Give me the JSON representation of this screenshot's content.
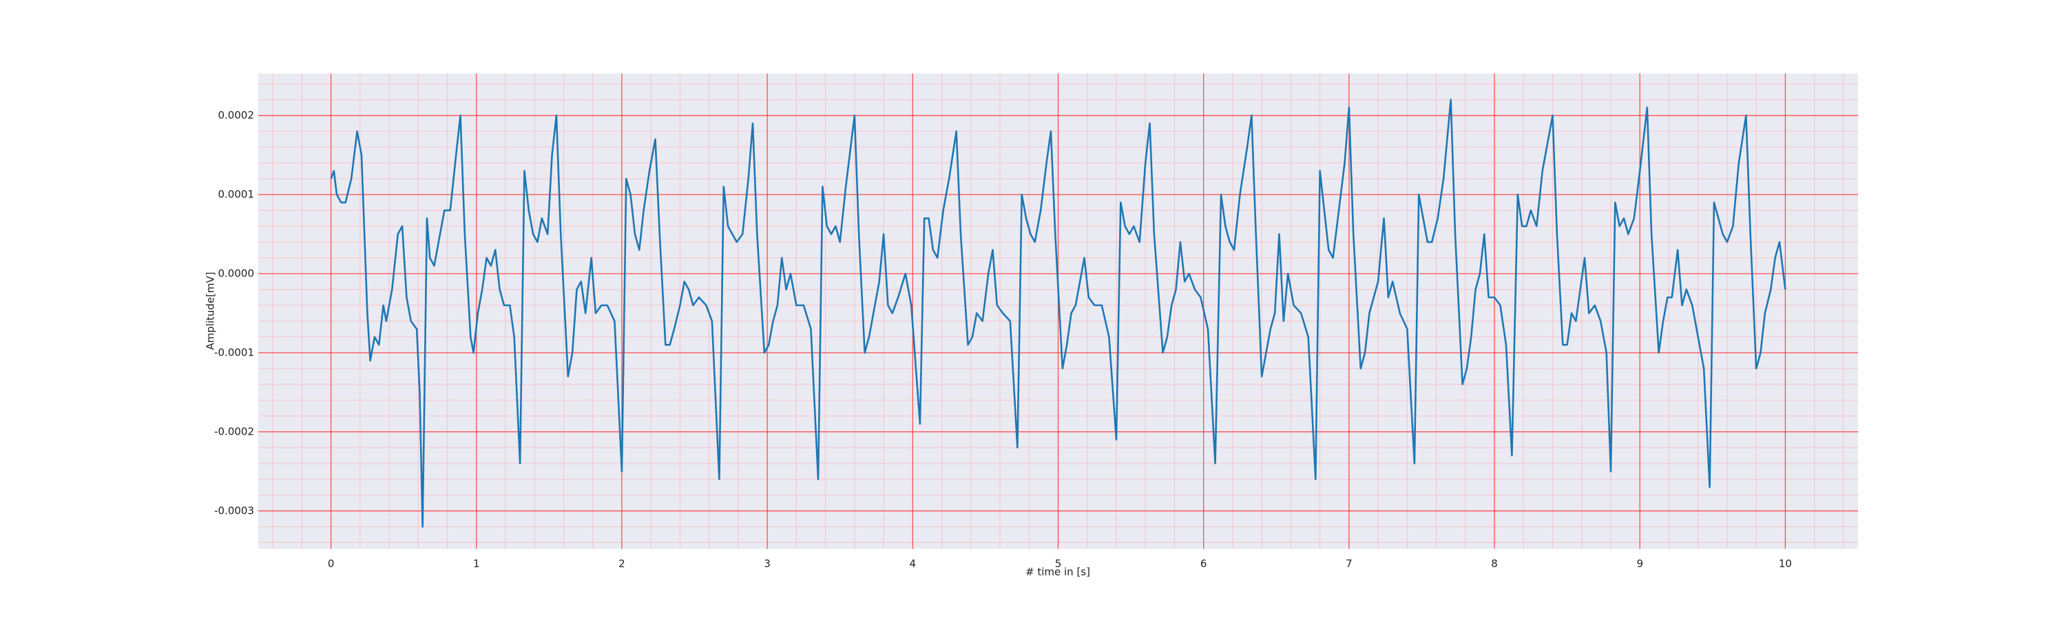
{
  "chart_data": {
    "type": "line",
    "xlabel": "# time in [s]",
    "ylabel": "Amplitude[mV]",
    "color": "#1f77b4",
    "grid": true,
    "minor_grid": true,
    "xlim": [
      -0.5,
      10.5
    ],
    "xticks": [
      0,
      1,
      2,
      3,
      4,
      5,
      6,
      7,
      8,
      9,
      10
    ],
    "ylim": [
      -0.000348,
      0.000253
    ],
    "yticks": [
      -0.0003,
      -0.0002,
      -0.0001,
      {
        "value": 0,
        "label": "0.0000"
      },
      0.0001,
      0.0002
    ],
    "x": [
      0,
      0.02,
      0.04,
      0.07,
      0.1,
      0.14,
      0.18,
      0.21,
      0.25,
      0.27,
      0.3,
      0.33,
      0.36,
      0.38,
      0.42,
      0.46,
      0.49,
      0.52,
      0.55,
      0.59,
      0.61,
      0.63,
      0.66,
      0.68,
      0.71,
      0.74,
      0.78,
      0.82,
      0.86,
      0.89,
      0.92,
      0.96,
      0.98,
      1.01,
      1.04,
      1.07,
      1.1,
      1.13,
      1.16,
      1.19,
      1.23,
      1.26,
      1.3,
      1.33,
      1.36,
      1.39,
      1.42,
      1.45,
      1.49,
      1.52,
      1.55,
      1.58,
      1.63,
      1.66,
      1.69,
      1.72,
      1.75,
      1.79,
      1.82,
      1.86,
      1.9,
      1.95,
      2.0,
      2.03,
      2.06,
      2.09,
      2.12,
      2.15,
      2.19,
      2.23,
      2.26,
      2.3,
      2.33,
      2.36,
      2.4,
      2.43,
      2.46,
      2.49,
      2.53,
      2.58,
      2.62,
      2.67,
      2.7,
      2.73,
      2.76,
      2.79,
      2.83,
      2.87,
      2.9,
      2.93,
      2.98,
      3.01,
      3.04,
      3.07,
      3.1,
      3.13,
      3.16,
      3.2,
      3.25,
      3.3,
      3.35,
      3.38,
      3.41,
      3.44,
      3.47,
      3.5,
      3.54,
      3.6,
      3.63,
      3.67,
      3.7,
      3.73,
      3.77,
      3.8,
      3.83,
      3.86,
      3.9,
      3.95,
      3.99,
      4.05,
      4.08,
      4.11,
      4.14,
      4.17,
      4.21,
      4.25,
      4.3,
      4.33,
      4.38,
      4.41,
      4.44,
      4.48,
      4.52,
      4.55,
      4.58,
      4.62,
      4.67,
      4.72,
      4.75,
      4.78,
      4.81,
      4.84,
      4.88,
      4.92,
      4.95,
      4.98,
      5.03,
      5.06,
      5.09,
      5.12,
      5.15,
      5.18,
      5.21,
      5.25,
      5.3,
      5.35,
      5.4,
      5.43,
      5.46,
      5.49,
      5.52,
      5.56,
      5.6,
      5.63,
      5.66,
      5.72,
      5.75,
      5.78,
      5.81,
      5.84,
      5.87,
      5.9,
      5.94,
      5.98,
      6.03,
      6.08,
      6.12,
      6.15,
      6.18,
      6.21,
      6.25,
      6.3,
      6.33,
      6.36,
      6.4,
      6.43,
      6.46,
      6.49,
      6.52,
      6.55,
      6.58,
      6.62,
      6.67,
      6.72,
      6.77,
      6.8,
      6.83,
      6.86,
      6.89,
      6.93,
      6.97,
      7.0,
      7.03,
      7.08,
      7.11,
      7.14,
      7.17,
      7.2,
      7.24,
      7.27,
      7.3,
      7.35,
      7.4,
      7.45,
      7.48,
      7.51,
      7.54,
      7.57,
      7.61,
      7.65,
      7.7,
      7.73,
      7.78,
      7.81,
      7.84,
      7.87,
      7.9,
      7.93,
      7.96,
      8.0,
      8.04,
      8.08,
      8.12,
      8.16,
      8.19,
      8.22,
      8.25,
      8.29,
      8.33,
      8.4,
      8.43,
      8.47,
      8.5,
      8.53,
      8.56,
      8.59,
      8.62,
      8.65,
      8.69,
      8.73,
      8.77,
      8.8,
      8.83,
      8.86,
      8.89,
      8.92,
      8.96,
      9.0,
      9.05,
      9.08,
      9.13,
      9.16,
      9.19,
      9.22,
      9.26,
      9.29,
      9.32,
      9.36,
      9.4,
      9.44,
      9.48,
      9.51,
      9.54,
      9.57,
      9.6,
      9.64,
      9.68,
      9.73,
      9.76,
      9.8,
      9.83,
      9.86,
      9.9,
      9.93,
      9.96,
      10.0
    ],
    "values": [
      0.00012,
      0.00013,
      0.0001,
      9e-05,
      9e-05,
      0.00012,
      0.00018,
      0.00015,
      -5e-05,
      -0.00011,
      -8e-05,
      -9e-05,
      -4e-05,
      -6e-05,
      -2e-05,
      5e-05,
      6e-05,
      -3e-05,
      -6e-05,
      -7e-05,
      -0.00015,
      -0.00032,
      7e-05,
      2e-05,
      1e-05,
      4e-05,
      8e-05,
      8e-05,
      0.00015,
      0.0002,
      5e-05,
      -8e-05,
      -0.0001,
      -5e-05,
      -2e-05,
      2e-05,
      1e-05,
      3e-05,
      -2e-05,
      -4e-05,
      -4e-05,
      -8e-05,
      -0.00024,
      0.00013,
      8e-05,
      5e-05,
      4e-05,
      7e-05,
      5e-05,
      0.00015,
      0.0002,
      5e-05,
      -0.00013,
      -0.0001,
      -2e-05,
      -1e-05,
      -5e-05,
      2e-05,
      -5e-05,
      -4e-05,
      -4e-05,
      -6e-05,
      -0.00025,
      0.00012,
      0.0001,
      5e-05,
      3e-05,
      8e-05,
      0.00013,
      0.00017,
      5e-05,
      -9e-05,
      -9e-05,
      -7e-05,
      -4e-05,
      -1e-05,
      -2e-05,
      -4e-05,
      -3e-05,
      -4e-05,
      -6e-05,
      -0.00026,
      0.00011,
      6e-05,
      5e-05,
      4e-05,
      5e-05,
      0.00012,
      0.00019,
      5e-05,
      -0.0001,
      -9e-05,
      -6e-05,
      -4e-05,
      2e-05,
      -2e-05,
      0,
      -4e-05,
      -4e-05,
      -7e-05,
      -0.00026,
      0.00011,
      6e-05,
      5e-05,
      6e-05,
      4e-05,
      0.00011,
      0.0002,
      5e-05,
      -0.0001,
      -8e-05,
      -5e-05,
      -1e-05,
      5e-05,
      -4e-05,
      -5e-05,
      -3e-05,
      0,
      -4e-05,
      -0.00019,
      7e-05,
      7e-05,
      3e-05,
      2e-05,
      8e-05,
      0.00012,
      0.00018,
      5e-05,
      -9e-05,
      -8e-05,
      -5e-05,
      -6e-05,
      0,
      3e-05,
      -4e-05,
      -5e-05,
      -6e-05,
      -0.00022,
      0.0001,
      7e-05,
      5e-05,
      4e-05,
      8e-05,
      0.00014,
      0.00018,
      5e-05,
      -0.00012,
      -9e-05,
      -5e-05,
      -4e-05,
      -1e-05,
      2e-05,
      -3e-05,
      -4e-05,
      -4e-05,
      -8e-05,
      -0.00021,
      9e-05,
      6e-05,
      5e-05,
      6e-05,
      4e-05,
      0.00014,
      0.00019,
      5e-05,
      -0.0001,
      -8e-05,
      -4e-05,
      -2e-05,
      4e-05,
      -1e-05,
      0,
      -2e-05,
      -3e-05,
      -7e-05,
      -0.00024,
      0.0001,
      6e-05,
      4e-05,
      3e-05,
      0.0001,
      0.00016,
      0.0002,
      5e-05,
      -0.00013,
      -0.0001,
      -7e-05,
      -5e-05,
      5e-05,
      -6e-05,
      0,
      -4e-05,
      -5e-05,
      -8e-05,
      -0.00026,
      0.00013,
      8e-05,
      3e-05,
      2e-05,
      8e-05,
      0.00014,
      0.00021,
      5e-05,
      -0.00012,
      -0.0001,
      -5e-05,
      -3e-05,
      -1e-05,
      7e-05,
      -3e-05,
      -1e-05,
      -5e-05,
      -7e-05,
      -0.00024,
      0.0001,
      7e-05,
      4e-05,
      4e-05,
      7e-05,
      0.00012,
      0.00022,
      5e-05,
      -0.00014,
      -0.00012,
      -8e-05,
      -2e-05,
      0,
      5e-05,
      -3e-05,
      -3e-05,
      -4e-05,
      -9e-05,
      -0.00023,
      0.0001,
      6e-05,
      6e-05,
      8e-05,
      6e-05,
      0.00013,
      0.0002,
      5e-05,
      -9e-05,
      -9e-05,
      -5e-05,
      -6e-05,
      -2e-05,
      2e-05,
      -5e-05,
      -4e-05,
      -6e-05,
      -0.0001,
      -0.00025,
      9e-05,
      6e-05,
      7e-05,
      5e-05,
      7e-05,
      0.00013,
      0.00021,
      5e-05,
      -0.0001,
      -6e-05,
      -3e-05,
      -3e-05,
      3e-05,
      -4e-05,
      -2e-05,
      -4e-05,
      -8e-05,
      -0.00012,
      -0.00027,
      9e-05,
      7e-05,
      5e-05,
      4e-05,
      6e-05,
      0.00014,
      0.0002,
      5e-05,
      -0.00012,
      -0.0001,
      -5e-05,
      -2e-05,
      2e-05,
      4e-05,
      -2e-05
    ]
  }
}
